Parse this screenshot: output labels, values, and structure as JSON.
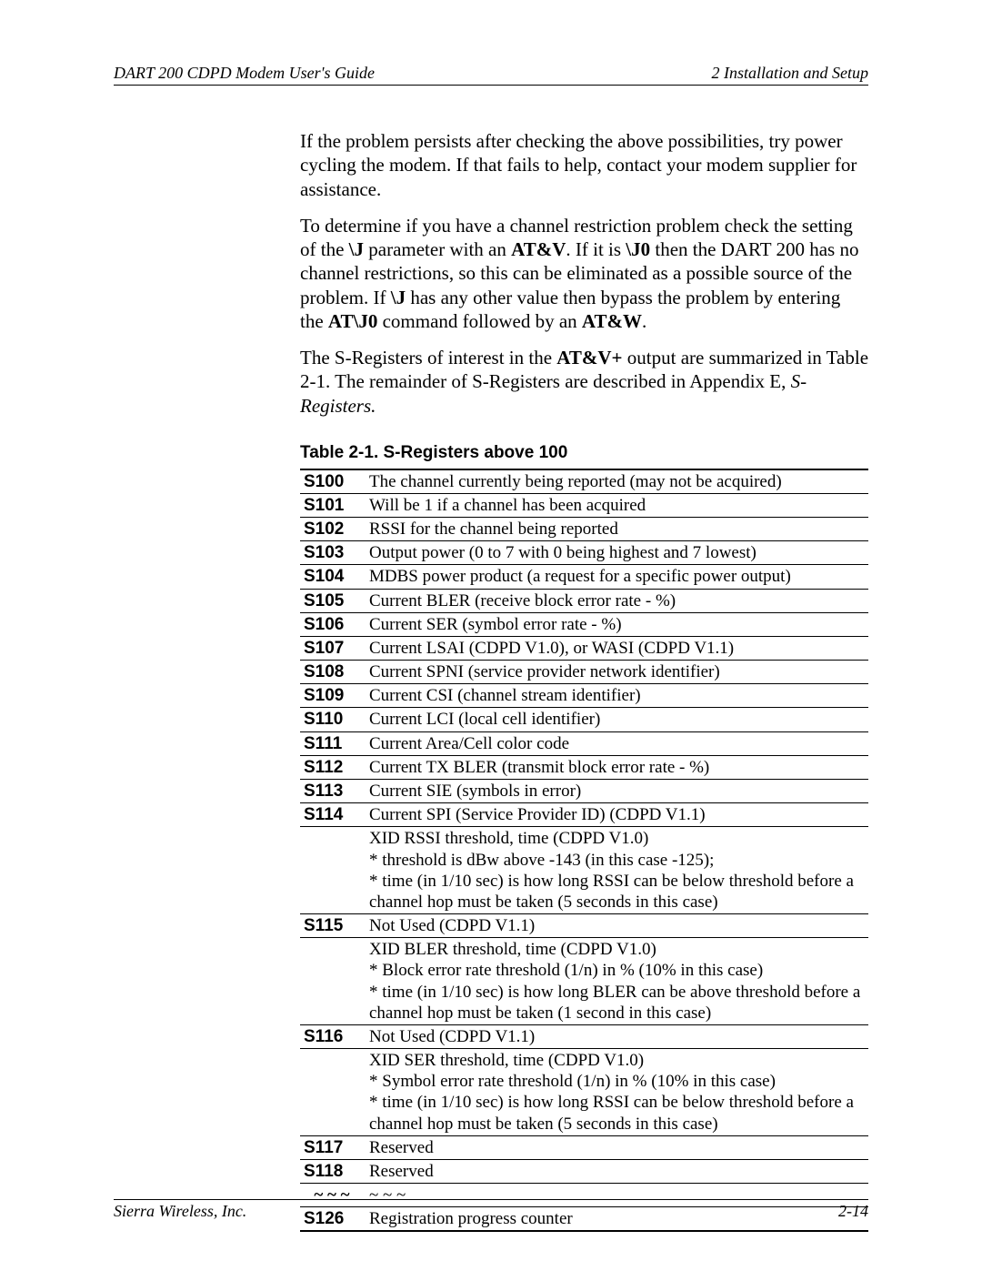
{
  "header": {
    "left": "DART 200 CDPD Modem User's Guide",
    "right": "2 Installation and Setup"
  },
  "footer": {
    "left": "Sierra Wireless, Inc.",
    "right": "2-14"
  },
  "paragraphs": {
    "p1": "If the problem persists after checking the above possibilities, try power cycling the modem. If that fails to help, contact your modem supplier for assistance.",
    "p2a": "To determine if you have a channel restriction problem check the setting of the ",
    "p2b": "\\J",
    "p2c": " parameter with an ",
    "p2d": "AT&V",
    "p2e": ". If it is ",
    "p2f": "\\J0",
    "p2g": " then the DART 200 has no channel restrictions, so this can be eliminated as a possible source of the problem. If ",
    "p2h": "\\J",
    "p2i": " has any other value then bypass the problem by entering the ",
    "p2j": "AT\\J0",
    "p2k": " command followed by an ",
    "p2l": "AT&W",
    "p2m": ".",
    "p3a": "The S-Registers of interest in the ",
    "p3b": "AT&V+",
    "p3c": " output are summarized in Table 2-1. The remainder of S-Registers are described in Appendix E, ",
    "p3d": "S-Registers.",
    "table_caption": "Table 2-1. S-Registers above 100"
  },
  "rows": [
    {
      "reg": "S100",
      "desc": "The channel currently being reported (may not be acquired)"
    },
    {
      "reg": "S101",
      "desc": "Will be 1 if a channel has been acquired"
    },
    {
      "reg": "S102",
      "desc": "RSSI for the channel being reported"
    },
    {
      "reg": "S103",
      "desc": "Output power (0 to 7 with 0 being highest and 7 lowest)"
    },
    {
      "reg": "S104",
      "desc": "MDBS power product (a request for a specific power output)"
    },
    {
      "reg": "S105",
      "desc": "Current BLER (receive block error rate - %)"
    },
    {
      "reg": "S106",
      "desc": "Current SER (symbol error rate - %)"
    },
    {
      "reg": "S107",
      "desc": "Current LSAI (CDPD V1.0), or WASI (CDPD V1.1)"
    },
    {
      "reg": "S108",
      "desc": "Current SPNI (service provider network identifier)"
    },
    {
      "reg": "S109",
      "desc": "Current CSI (channel stream identifier)"
    },
    {
      "reg": "S110",
      "desc": "Current LCI (local cell identifier)"
    },
    {
      "reg": "S111",
      "desc": "Current Area/Cell color code"
    },
    {
      "reg": "S112",
      "desc": "Current TX BLER (transmit block error rate - %)"
    },
    {
      "reg": "S113",
      "desc": "Current SIE (symbols in error)"
    },
    {
      "reg": "S114",
      "desc": "Current SPI (Service Provider ID)   (CDPD V1.1)"
    },
    {
      "reg": "",
      "desc": "XID RSSI threshold, time (CDPD V1.0)\n* threshold is dBw above -143 (in this case -125);\n* time (in 1/10 sec) is how long RSSI can be below threshold before a channel hop must be taken (5 seconds in this case)"
    },
    {
      "reg": "S115",
      "desc": "Not Used (CDPD V1.1)"
    },
    {
      "reg": "",
      "desc": "XID BLER threshold, time (CDPD V1.0)\n* Block error rate threshold (1/n) in % (10% in this case)\n* time (in 1/10 sec) is how long BLER can be above threshold before a channel hop must be taken (1 second in this case)"
    },
    {
      "reg": "S116",
      "desc": "Not Used (CDPD V1.1)"
    },
    {
      "reg": "",
      "desc": "XID SER threshold, time (CDPD V1.0)\n* Symbol error rate threshold (1/n) in % (10% in this case)\n* time (in 1/10 sec) is how long RSSI can be below threshold before a channel hop must be taken (5 seconds in this case)"
    },
    {
      "reg": "S117",
      "desc": "Reserved"
    },
    {
      "reg": "S118",
      "desc": "Reserved"
    },
    {
      "reg": "~ ~ ~",
      "desc": "~ ~ ~",
      "tilde": true
    },
    {
      "reg": "S126",
      "desc": "Registration progress counter"
    }
  ]
}
